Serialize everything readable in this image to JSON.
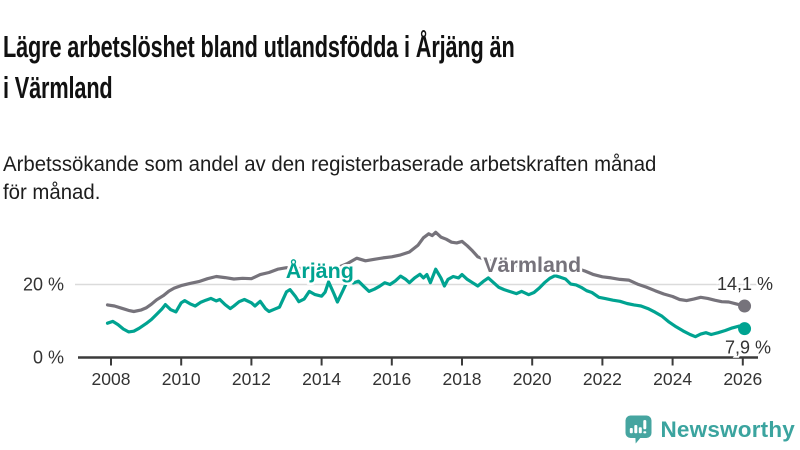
{
  "header": {
    "title": "Lägre arbetslöshet bland utlandsfödda i Årjäng än\ni Värmland",
    "subtitle": "Arbetssökande som andel av den registerbaserade arbetskraften månad\nför månad."
  },
  "footer": {
    "brand": "Newsworthy",
    "logo_icon": "newsworthy-speech-bubble-bar-chart-icon"
  },
  "colors": {
    "arjang": "#00A391",
    "varmland": "#76737B",
    "axis": "#3b3b3b",
    "grid": "#dbdbdb",
    "tick_label": "#333333",
    "logo_teal": "#46A5A0"
  },
  "chart_data": {
    "type": "line",
    "unit": "%",
    "x_domain": [
      2008,
      2026.05
    ],
    "ylim": [
      0,
      36
    ],
    "grid": "y-20-only",
    "x_ticks": [
      2008,
      2010,
      2012,
      2014,
      2016,
      2018,
      2020,
      2022,
      2024,
      2026
    ],
    "y_ticks": [
      {
        "value": 0,
        "label": "0 %"
      },
      {
        "value": 20,
        "label": "20 %"
      }
    ],
    "series": [
      {
        "name": "Värmland",
        "color_key": "varmland",
        "end_value": 14.1,
        "end_label": "14,1 %",
        "end_label_side": "above",
        "points": [
          [
            2007.9,
            14.4
          ],
          [
            2008.1,
            14.1
          ],
          [
            2008.3,
            13.5
          ],
          [
            2008.5,
            12.9
          ],
          [
            2008.65,
            12.6
          ],
          [
            2008.85,
            13.0
          ],
          [
            2009.0,
            13.6
          ],
          [
            2009.15,
            14.6
          ],
          [
            2009.3,
            15.8
          ],
          [
            2009.5,
            17.0
          ],
          [
            2009.65,
            18.2
          ],
          [
            2009.8,
            19.0
          ],
          [
            2010.0,
            19.7
          ],
          [
            2010.25,
            20.3
          ],
          [
            2010.5,
            20.8
          ],
          [
            2010.75,
            21.6
          ],
          [
            2011.0,
            22.2
          ],
          [
            2011.25,
            21.9
          ],
          [
            2011.5,
            21.5
          ],
          [
            2011.75,
            21.7
          ],
          [
            2012.0,
            21.6
          ],
          [
            2012.25,
            22.7
          ],
          [
            2012.5,
            23.3
          ],
          [
            2012.75,
            24.2
          ],
          [
            2013.0,
            24.6
          ],
          [
            2013.25,
            24.2
          ],
          [
            2013.5,
            24.6
          ],
          [
            2013.75,
            25.1
          ],
          [
            2014.0,
            25.5
          ],
          [
            2014.25,
            25.0
          ],
          [
            2014.5,
            24.8
          ],
          [
            2014.75,
            25.8
          ],
          [
            2015.0,
            27.2
          ],
          [
            2015.25,
            26.5
          ],
          [
            2015.5,
            26.9
          ],
          [
            2015.75,
            27.3
          ],
          [
            2016.0,
            27.6
          ],
          [
            2016.25,
            28.1
          ],
          [
            2016.5,
            28.9
          ],
          [
            2016.75,
            30.8
          ],
          [
            2016.9,
            32.8
          ],
          [
            2017.05,
            33.9
          ],
          [
            2017.15,
            33.4
          ],
          [
            2017.25,
            34.3
          ],
          [
            2017.4,
            33.0
          ],
          [
            2017.55,
            32.4
          ],
          [
            2017.7,
            31.6
          ],
          [
            2017.85,
            31.4
          ],
          [
            2018.0,
            31.8
          ],
          [
            2018.15,
            30.6
          ],
          [
            2018.3,
            29.2
          ],
          [
            2018.45,
            27.6
          ],
          [
            2018.6,
            27.0
          ],
          [
            2018.8,
            26.4
          ],
          [
            2019.0,
            26.0
          ],
          [
            2019.25,
            25.5
          ],
          [
            2019.5,
            25.2
          ],
          [
            2019.75,
            25.0
          ],
          [
            2020.0,
            25.3
          ],
          [
            2020.25,
            25.9
          ],
          [
            2020.5,
            26.3
          ],
          [
            2020.75,
            26.0
          ],
          [
            2021.0,
            25.3
          ],
          [
            2021.25,
            24.5
          ],
          [
            2021.5,
            23.7
          ],
          [
            2021.75,
            22.7
          ],
          [
            2022.0,
            22.1
          ],
          [
            2022.25,
            21.8
          ],
          [
            2022.5,
            21.4
          ],
          [
            2022.75,
            21.2
          ],
          [
            2023.0,
            20.1
          ],
          [
            2023.25,
            19.3
          ],
          [
            2023.5,
            18.3
          ],
          [
            2023.75,
            17.4
          ],
          [
            2024.0,
            16.7
          ],
          [
            2024.2,
            15.9
          ],
          [
            2024.4,
            15.6
          ],
          [
            2024.6,
            16.0
          ],
          [
            2024.8,
            16.5
          ],
          [
            2025.0,
            16.2
          ],
          [
            2025.2,
            15.7
          ],
          [
            2025.4,
            15.3
          ],
          [
            2025.6,
            15.2
          ],
          [
            2025.8,
            14.7
          ],
          [
            2026.05,
            14.1
          ]
        ]
      },
      {
        "name": "Årjäng",
        "color_key": "arjang",
        "end_value": 7.9,
        "end_label": "7,9 %",
        "end_label_side": "below",
        "points": [
          [
            2007.9,
            9.4
          ],
          [
            2008.05,
            9.9
          ],
          [
            2008.2,
            9.0
          ],
          [
            2008.35,
            7.8
          ],
          [
            2008.5,
            7.0
          ],
          [
            2008.65,
            7.2
          ],
          [
            2008.8,
            8.0
          ],
          [
            2009.0,
            9.3
          ],
          [
            2009.15,
            10.4
          ],
          [
            2009.3,
            11.8
          ],
          [
            2009.45,
            13.3
          ],
          [
            2009.55,
            14.5
          ],
          [
            2009.7,
            13.1
          ],
          [
            2009.85,
            12.5
          ],
          [
            2010.0,
            15.0
          ],
          [
            2010.1,
            15.6
          ],
          [
            2010.25,
            14.7
          ],
          [
            2010.4,
            14.1
          ],
          [
            2010.55,
            15.1
          ],
          [
            2010.7,
            15.7
          ],
          [
            2010.85,
            16.2
          ],
          [
            2011.0,
            15.5
          ],
          [
            2011.1,
            15.9
          ],
          [
            2011.25,
            14.5
          ],
          [
            2011.4,
            13.4
          ],
          [
            2011.5,
            14.1
          ],
          [
            2011.65,
            15.3
          ],
          [
            2011.8,
            15.9
          ],
          [
            2012.0,
            15.0
          ],
          [
            2012.1,
            14.1
          ],
          [
            2012.25,
            15.4
          ],
          [
            2012.4,
            13.4
          ],
          [
            2012.5,
            12.6
          ],
          [
            2012.65,
            13.2
          ],
          [
            2012.8,
            13.8
          ],
          [
            2013.0,
            18.0
          ],
          [
            2013.1,
            18.6
          ],
          [
            2013.25,
            16.8
          ],
          [
            2013.35,
            15.3
          ],
          [
            2013.5,
            16.0
          ],
          [
            2013.65,
            18.1
          ],
          [
            2013.8,
            17.3
          ],
          [
            2014.0,
            16.8
          ],
          [
            2014.1,
            17.9
          ],
          [
            2014.2,
            20.7
          ],
          [
            2014.35,
            17.5
          ],
          [
            2014.45,
            15.2
          ],
          [
            2014.6,
            18.2
          ],
          [
            2014.75,
            21.3
          ],
          [
            2014.9,
            20.4
          ],
          [
            2015.05,
            20.9
          ],
          [
            2015.2,
            19.5
          ],
          [
            2015.35,
            18.1
          ],
          [
            2015.5,
            18.7
          ],
          [
            2015.65,
            19.5
          ],
          [
            2015.8,
            20.5
          ],
          [
            2015.95,
            20.0
          ],
          [
            2016.1,
            21.0
          ],
          [
            2016.25,
            22.3
          ],
          [
            2016.4,
            21.4
          ],
          [
            2016.5,
            20.5
          ],
          [
            2016.65,
            21.8
          ],
          [
            2016.8,
            22.8
          ],
          [
            2016.9,
            21.8
          ],
          [
            2017.0,
            22.7
          ],
          [
            2017.1,
            20.5
          ],
          [
            2017.25,
            24.2
          ],
          [
            2017.4,
            21.8
          ],
          [
            2017.5,
            19.6
          ],
          [
            2017.6,
            21.4
          ],
          [
            2017.75,
            22.2
          ],
          [
            2017.9,
            21.8
          ],
          [
            2018.0,
            22.7
          ],
          [
            2018.15,
            21.4
          ],
          [
            2018.3,
            20.5
          ],
          [
            2018.45,
            19.6
          ],
          [
            2018.6,
            20.8
          ],
          [
            2018.75,
            21.8
          ],
          [
            2018.9,
            20.5
          ],
          [
            2019.05,
            19.2
          ],
          [
            2019.2,
            18.6
          ],
          [
            2019.35,
            18.1
          ],
          [
            2019.55,
            17.5
          ],
          [
            2019.7,
            18.1
          ],
          [
            2019.9,
            17.2
          ],
          [
            2020.05,
            17.8
          ],
          [
            2020.2,
            19.0
          ],
          [
            2020.35,
            20.5
          ],
          [
            2020.5,
            21.7
          ],
          [
            2020.65,
            22.4
          ],
          [
            2020.8,
            22.0
          ],
          [
            2020.95,
            21.5
          ],
          [
            2021.1,
            20.1
          ],
          [
            2021.25,
            19.9
          ],
          [
            2021.4,
            19.2
          ],
          [
            2021.55,
            18.3
          ],
          [
            2021.7,
            17.8
          ],
          [
            2021.9,
            16.5
          ],
          [
            2022.1,
            16.1
          ],
          [
            2022.3,
            15.7
          ],
          [
            2022.5,
            15.4
          ],
          [
            2022.7,
            14.8
          ],
          [
            2022.9,
            14.4
          ],
          [
            2023.1,
            14.1
          ],
          [
            2023.3,
            13.4
          ],
          [
            2023.5,
            12.4
          ],
          [
            2023.7,
            11.3
          ],
          [
            2023.9,
            9.7
          ],
          [
            2024.1,
            8.4
          ],
          [
            2024.3,
            7.3
          ],
          [
            2024.5,
            6.3
          ],
          [
            2024.65,
            5.7
          ],
          [
            2024.8,
            6.4
          ],
          [
            2024.95,
            6.8
          ],
          [
            2025.1,
            6.3
          ],
          [
            2025.3,
            6.8
          ],
          [
            2025.5,
            7.4
          ],
          [
            2025.7,
            8.1
          ],
          [
            2025.9,
            8.6
          ],
          [
            2026.05,
            7.9
          ]
        ]
      }
    ],
    "series_labels": [
      {
        "text": "Årjäng",
        "x": 2013.95,
        "y": 23.7,
        "color_key": "arjang"
      },
      {
        "text": "Värmland",
        "x": 2020.0,
        "y": 25.3,
        "color_key": "varmland"
      }
    ]
  }
}
